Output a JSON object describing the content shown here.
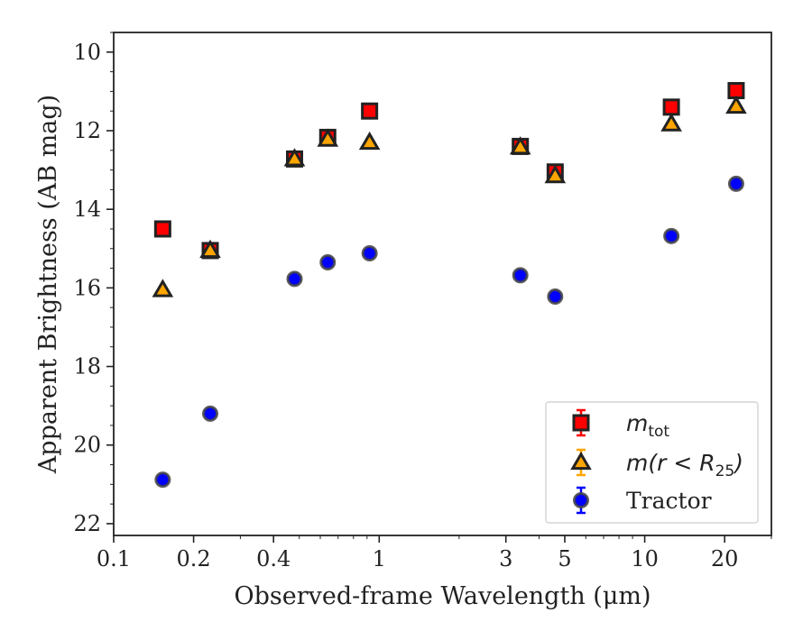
{
  "chart_data": {
    "type": "scatter",
    "xlabel": "Observed-frame Wavelength (μm)",
    "ylabel": "Apparent Brightness (AB mag)",
    "x_scale": "log",
    "y_inverted": true,
    "xlim": [
      0.1,
      30
    ],
    "ylim": [
      22.3,
      9.5
    ],
    "x_ticks": [
      {
        "value": 0.1,
        "label": "0.1"
      },
      {
        "value": 0.2,
        "label": "0.2"
      },
      {
        "value": 0.4,
        "label": "0.4"
      },
      {
        "value": 1,
        "label": "1"
      },
      {
        "value": 3,
        "label": "3"
      },
      {
        "value": 5,
        "label": "5"
      },
      {
        "value": 10,
        "label": "10"
      },
      {
        "value": 20,
        "label": "20"
      }
    ],
    "y_ticks": [
      {
        "value": 10,
        "label": "10"
      },
      {
        "value": 12,
        "label": "12"
      },
      {
        "value": 14,
        "label": "14"
      },
      {
        "value": 16,
        "label": "16"
      },
      {
        "value": 18,
        "label": "18"
      },
      {
        "value": 20,
        "label": "20"
      },
      {
        "value": 22,
        "label": "22"
      }
    ],
    "legend_position": "lower-right",
    "series": [
      {
        "name_main": "m",
        "name_sub": "tot",
        "marker": "square",
        "color": "#ff0000",
        "edge_color": "#222222",
        "x": [
          0.153,
          0.231,
          0.48,
          0.64,
          0.92,
          3.4,
          4.6,
          12.6,
          22.1
        ],
        "y": [
          14.5,
          15.05,
          12.72,
          12.17,
          11.5,
          12.4,
          13.05,
          11.4,
          10.98
        ]
      },
      {
        "name_main": "m(r < R",
        "name_sub": "25",
        "name_tail": ")",
        "marker": "triangle",
        "color": "#ffa500",
        "edge_color": "#222222",
        "x": [
          0.153,
          0.231,
          0.48,
          0.64,
          0.92,
          3.4,
          4.6,
          12.6,
          22.1
        ],
        "y": [
          16.05,
          15.05,
          12.72,
          12.22,
          12.3,
          12.42,
          13.15,
          11.83,
          11.38
        ]
      },
      {
        "name": "Tractor",
        "marker": "circle",
        "color": "#0000ff",
        "edge_color": "#444444",
        "x": [
          0.153,
          0.231,
          0.48,
          0.64,
          0.92,
          3.4,
          4.6,
          12.6,
          22.1
        ],
        "y": [
          20.88,
          19.2,
          15.77,
          15.35,
          15.12,
          15.68,
          16.22,
          14.68,
          13.35
        ]
      }
    ]
  }
}
